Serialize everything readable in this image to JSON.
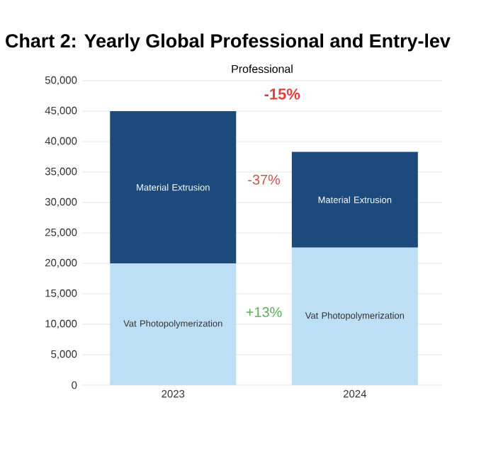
{
  "chart_data": {
    "type": "bar",
    "stacked": true,
    "title": "Chart 2: Yearly Global Professional and Entry-lev",
    "subtitle": "Professional",
    "categories": [
      "2023",
      "2024"
    ],
    "series": [
      {
        "name": "Vat Photopolymerization",
        "color": "#bddff5",
        "values": [
          20000,
          22600
        ]
      },
      {
        "name": "Material Extrusion",
        "color": "#1d4a7c",
        "values": [
          25000,
          15700
        ]
      }
    ],
    "annotations": [
      "-15%",
      "-37%",
      "+13%"
    ],
    "ylim": [
      0,
      50000
    ],
    "yticks": [
      {
        "value": 0,
        "label": "0"
      },
      {
        "value": 5000,
        "label": "5,000"
      },
      {
        "value": 10000,
        "label": "10,000"
      },
      {
        "value": 15000,
        "label": "15,000"
      },
      {
        "value": 20000,
        "label": "20,000"
      },
      {
        "value": 25000,
        "label": "25,000"
      },
      {
        "value": 30000,
        "label": "30,000"
      },
      {
        "value": 35000,
        "label": "35,000"
      },
      {
        "value": 40000,
        "label": "40,000"
      },
      {
        "value": 45000,
        "label": "45,000"
      },
      {
        "value": 50000,
        "label": "50,000"
      }
    ],
    "grid": "y"
  }
}
